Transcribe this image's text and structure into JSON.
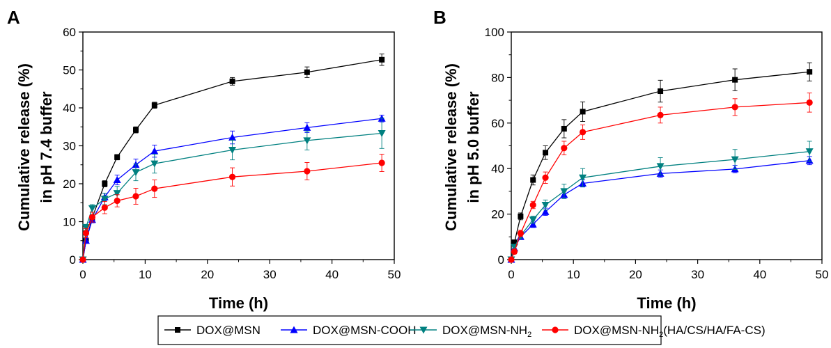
{
  "chart_data": [
    {
      "type": "line",
      "panel_label": "A",
      "xlabel": "Time (h)",
      "ylabel_line1": "Cumulative release (%)",
      "ylabel_line2": "in pH 7.4 buffer",
      "xlim": [
        0,
        50
      ],
      "ylim": [
        0,
        60
      ],
      "xticks": [
        0,
        10,
        20,
        30,
        40,
        50
      ],
      "yticks": [
        0,
        10,
        20,
        30,
        40,
        50,
        60
      ],
      "grid": false,
      "x": [
        0,
        0.5,
        1.5,
        3.5,
        5.5,
        8.5,
        11.5,
        24,
        36,
        48
      ],
      "series": [
        {
          "key": "s1",
          "values": [
            0,
            5,
            11,
            20,
            27,
            34.2,
            40.7,
            47,
            49.4,
            52.7
          ],
          "err": [
            0,
            0.6,
            0.8,
            0.8,
            0.7,
            0.8,
            0.8,
            1.0,
            1.4,
            1.5
          ]
        },
        {
          "key": "s2",
          "values": [
            0,
            5,
            10.5,
            16.5,
            21,
            25,
            28.6,
            32.2,
            34.8,
            37.2
          ],
          "err": [
            0,
            0.6,
            0.8,
            1.0,
            1.3,
            1.5,
            1.6,
            1.7,
            1.3,
            0.9
          ]
        },
        {
          "key": "s3",
          "values": [
            0,
            8.5,
            13.5,
            16,
            17.5,
            23,
            25.3,
            28.9,
            31.4,
            33.3
          ],
          "err": [
            0,
            0.8,
            1.0,
            1.5,
            1.8,
            2.2,
            2.5,
            2.6,
            2.5,
            4.0
          ]
        },
        {
          "key": "s4",
          "values": [
            0,
            7,
            11.2,
            13.7,
            15.5,
            16.7,
            18.7,
            21.8,
            23.3,
            25.5
          ],
          "err": [
            0,
            1.2,
            1.3,
            1.6,
            1.6,
            2.1,
            2.3,
            2.4,
            2.3,
            2.3
          ]
        }
      ]
    },
    {
      "type": "line",
      "panel_label": "B",
      "xlabel": "Time (h)",
      "ylabel_line1": "Cumulative release (%)",
      "ylabel_line2": "in pH 5.0 buffer",
      "xlim": [
        0,
        50
      ],
      "ylim": [
        0,
        100
      ],
      "xticks": [
        0,
        10,
        20,
        30,
        40,
        50
      ],
      "yticks": [
        0,
        20,
        40,
        60,
        80,
        100
      ],
      "grid": false,
      "x": [
        0,
        0.5,
        1.5,
        3.5,
        5.5,
        8.5,
        11.5,
        24,
        36,
        48
      ],
      "series": [
        {
          "key": "s1",
          "values": [
            0,
            7.5,
            19,
            35,
            47,
            57.5,
            65,
            74,
            79,
            82.5
          ],
          "err": [
            0,
            1.2,
            1.5,
            2.2,
            3.0,
            4.0,
            4.3,
            4.8,
            4.8,
            4.0
          ]
        },
        {
          "key": "s2",
          "values": [
            0,
            5,
            10,
            15.5,
            21,
            28.5,
            33.5,
            37.8,
            39.8,
            43.5
          ],
          "err": [
            0,
            0.8,
            1.0,
            1.4,
            1.6,
            1.6,
            1.6,
            1.6,
            1.6,
            1.8
          ]
        },
        {
          "key": "s3",
          "values": [
            0,
            5.5,
            10.5,
            17.5,
            24,
            30,
            36,
            41,
            44,
            47.5
          ],
          "err": [
            0,
            1.0,
            1.3,
            1.6,
            2.2,
            3.2,
            4.0,
            3.8,
            4.4,
            4.5
          ]
        },
        {
          "key": "s4",
          "values": [
            0,
            3.5,
            11.5,
            24,
            36,
            49,
            56,
            63.5,
            67,
            69
          ],
          "err": [
            0,
            1.0,
            1.4,
            1.6,
            2.5,
            3.0,
            3.2,
            3.5,
            3.7,
            4.2
          ]
        }
      ]
    }
  ],
  "series_style": {
    "s1": {
      "color": "#000000",
      "marker": "square"
    },
    "s2": {
      "color": "#0000ff",
      "marker": "triangle-up"
    },
    "s3": {
      "color": "#008080",
      "marker": "triangle-down"
    },
    "s4": {
      "color": "#ff0000",
      "marker": "circle"
    }
  },
  "legend": {
    "placement": "bottom",
    "items": [
      {
        "key": "s1",
        "parts": [
          {
            "t": "DOX@MSN",
            "sub": false
          }
        ]
      },
      {
        "key": "s2",
        "parts": [
          {
            "t": "DOX@MSN-COOH",
            "sub": false
          }
        ]
      },
      {
        "key": "s3",
        "parts": [
          {
            "t": "DOX@MSN-NH",
            "sub": false
          },
          {
            "t": "2",
            "sub": true
          }
        ]
      },
      {
        "key": "s4",
        "parts": [
          {
            "t": "DOX@MSN-NH",
            "sub": false
          },
          {
            "t": "2",
            "sub": true
          },
          {
            "t": "(HA/CS/HA/FA-CS)",
            "sub": false
          }
        ]
      }
    ]
  }
}
